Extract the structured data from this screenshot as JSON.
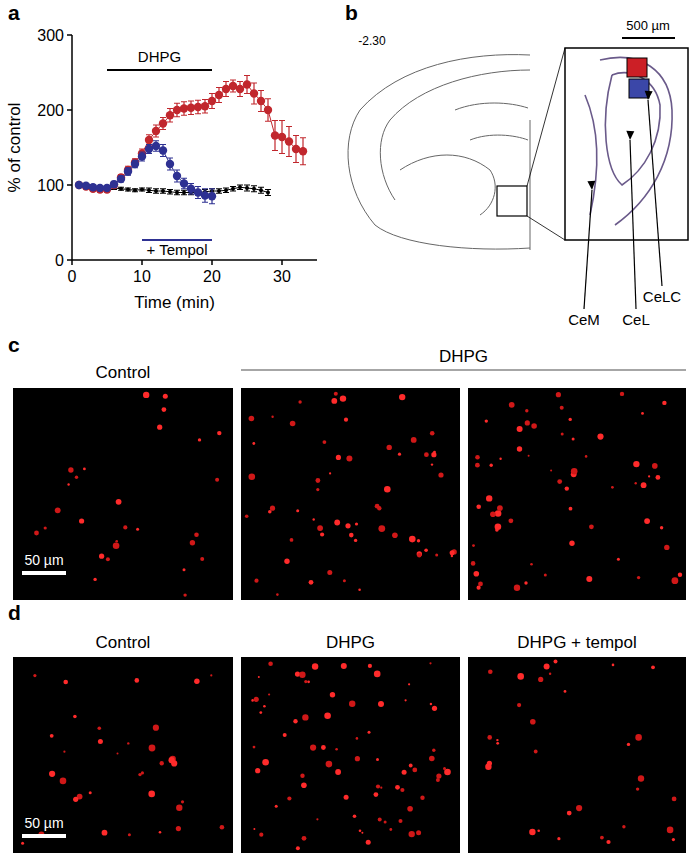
{
  "chart_data": {
    "type": "line",
    "x_label": "Time (min)",
    "y_label": "% of control",
    "xlim": [
      0,
      35
    ],
    "xticks": [
      0,
      10,
      20,
      30
    ],
    "ylim": [
      0,
      300
    ],
    "yticks": [
      0,
      100,
      200,
      300
    ],
    "annotations": [
      {
        "text": "DHPG",
        "x": [
          5,
          20
        ],
        "color": "#000000"
      },
      {
        "text": "+ Tempol",
        "x": [
          10,
          20
        ],
        "color": "#2e3192"
      }
    ],
    "series": [
      {
        "color": "#000000",
        "marker": "dot",
        "x": [
          1,
          2,
          3,
          4,
          5,
          6,
          7,
          8,
          9,
          10,
          11,
          12,
          13,
          14,
          15,
          16,
          17,
          18,
          19,
          20,
          21,
          22,
          23,
          24,
          25,
          26,
          27,
          28
        ],
        "values": [
          100,
          100,
          98,
          97,
          96,
          96,
          95,
          94,
          93,
          94,
          93,
          92,
          92,
          91,
          90,
          90,
          90,
          90,
          91,
          92,
          92,
          93,
          95,
          97,
          96,
          95,
          93,
          90
        ],
        "errors": [
          2,
          2,
          2,
          2,
          2,
          2,
          2,
          2,
          2,
          2,
          3,
          3,
          3,
          3,
          3,
          3,
          3,
          3,
          3,
          3,
          3,
          3,
          3,
          3,
          4,
          4,
          4,
          4
        ]
      },
      {
        "color": "#c1272d",
        "marker": "circle",
        "x": [
          1,
          2,
          3,
          4,
          5,
          6,
          7,
          8,
          9,
          10,
          11,
          12,
          13,
          14,
          15,
          16,
          17,
          18,
          19,
          20,
          21,
          22,
          23,
          24,
          25,
          26,
          27,
          28,
          29,
          30,
          31,
          32,
          33
        ],
        "values": [
          100,
          98,
          95,
          94,
          94,
          100,
          110,
          120,
          130,
          142,
          160,
          172,
          182,
          193,
          200,
          202,
          203,
          204,
          205,
          212,
          220,
          228,
          232,
          228,
          234,
          222,
          212,
          200,
          166,
          164,
          158,
          148,
          145
        ],
        "errors": [
          3,
          3,
          3,
          3,
          3,
          4,
          4,
          5,
          5,
          6,
          7,
          8,
          8,
          9,
          9,
          9,
          9,
          9,
          9,
          10,
          10,
          10,
          8,
          10,
          12,
          14,
          14,
          15,
          20,
          22,
          20,
          18,
          18
        ]
      },
      {
        "color": "#2e3192",
        "marker": "circle",
        "x": [
          1,
          2,
          3,
          4,
          5,
          6,
          7,
          8,
          9,
          10,
          11,
          12,
          13,
          14,
          15,
          16,
          17,
          18,
          19,
          20
        ],
        "values": [
          100,
          99,
          97,
          96,
          96,
          101,
          108,
          118,
          128,
          138,
          148,
          152,
          146,
          128,
          112,
          102,
          95,
          90,
          86,
          85
        ],
        "errors": [
          3,
          3,
          3,
          3,
          3,
          4,
          4,
          5,
          5,
          6,
          6,
          7,
          8,
          8,
          8,
          7,
          7,
          8,
          9,
          10
        ]
      }
    ]
  },
  "figure": {
    "panel_labels": [
      "a",
      "b",
      "c",
      "d"
    ],
    "atlas": {
      "bregma": "-2.30",
      "scale_bar": "500 µm",
      "regions": [
        "CeM",
        "CeL",
        "CeLC"
      ]
    },
    "panel_c": {
      "conditions": [
        "Control",
        "DHPG"
      ],
      "scale_bar": "50 µm"
    },
    "panel_d": {
      "conditions": [
        "Control",
        "DHPG",
        "DHPG + tempol"
      ],
      "scale_bar": "50 µm"
    }
  }
}
